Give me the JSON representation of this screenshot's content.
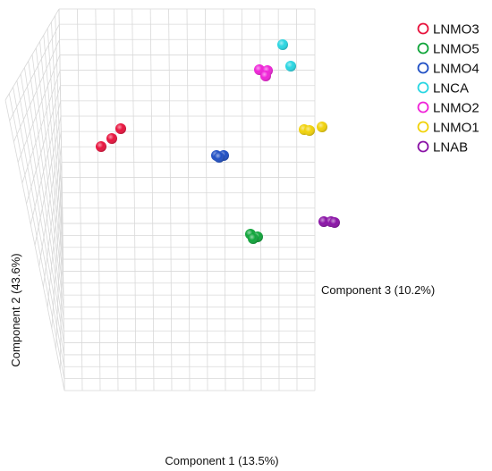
{
  "chart_data": {
    "type": "scatter",
    "projection": "3d",
    "grid": true,
    "legend_position": "top-right",
    "xlabel": "Component 1 (13.5%)",
    "ylabel": "Component 2 (43.6%)",
    "zlabel": "Component 3 (10.2%)",
    "series": [
      {
        "name": "LNMO3",
        "color": "#e8133d"
      },
      {
        "name": "LNMO5",
        "color": "#10a53a"
      },
      {
        "name": "LNMO4",
        "color": "#1f4fc4"
      },
      {
        "name": "LNCA",
        "color": "#29d6e2"
      },
      {
        "name": "LNMO2",
        "color": "#f023d8"
      },
      {
        "name": "LNMO1",
        "color": "#f1d20a"
      },
      {
        "name": "LNAB",
        "color": "#8a12a6"
      }
    ]
  }
}
